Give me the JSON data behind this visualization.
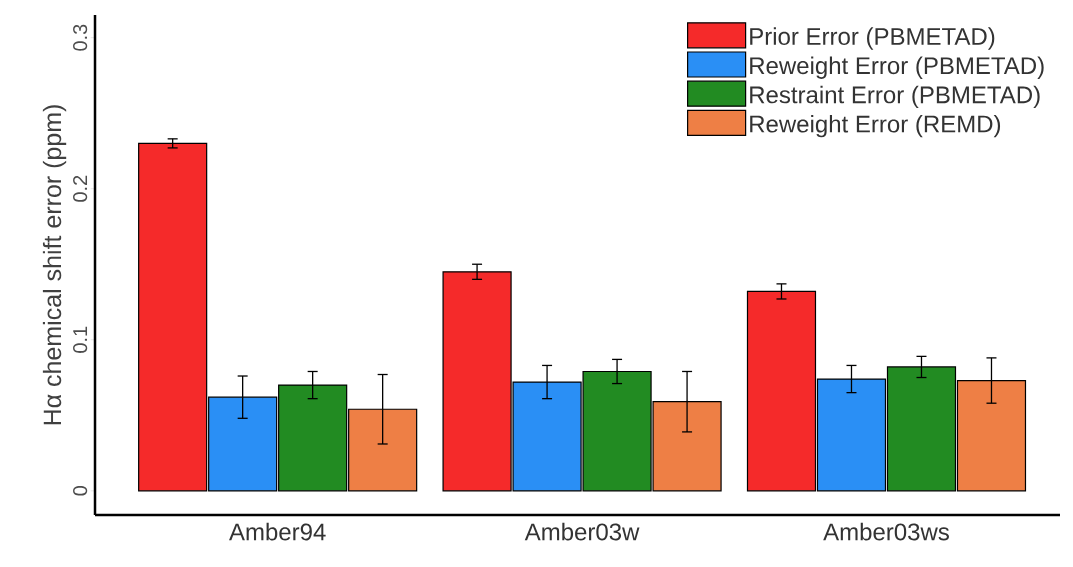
{
  "chart_data": {
    "type": "bar",
    "ylabel": "Hα chemical shift error (ppm)",
    "categories": [
      "Amber94",
      "Amber03w",
      "Amber03ws"
    ],
    "series": [
      {
        "name": "Prior Error (PBMETAD)",
        "color": "#f52a2a",
        "values": [
          0.23,
          0.145,
          0.132
        ],
        "errors": [
          0.003,
          0.005,
          0.005
        ]
      },
      {
        "name": "Reweight Error (PBMETAD)",
        "color": "#2a8ff5",
        "values": [
          0.062,
          0.072,
          0.074
        ],
        "errors": [
          0.014,
          0.011,
          0.009
        ]
      },
      {
        "name": "Restraint Error (PBMETAD)",
        "color": "#228b22",
        "values": [
          0.07,
          0.079,
          0.082
        ],
        "errors": [
          0.009,
          0.008,
          0.007
        ]
      },
      {
        "name": "Reweight Error (REMD)",
        "color": "#ee7f45",
        "values": [
          0.054,
          0.059,
          0.073
        ],
        "errors": [
          0.023,
          0.02,
          0.015
        ]
      }
    ],
    "ylim": [
      -0.016,
      0.315
    ],
    "yticks": [
      0,
      0.1,
      0.2,
      0.3
    ],
    "grid": false,
    "legend": "top right"
  }
}
